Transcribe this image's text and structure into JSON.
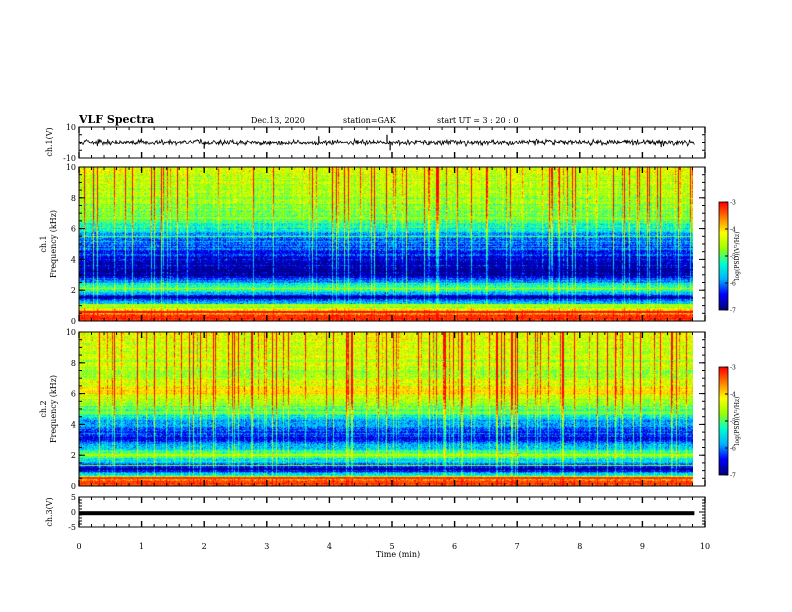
{
  "header": {
    "title": "VLF Spectra",
    "date": "Dec.13, 2020",
    "station": "station=GAK",
    "start_ut": "start  UT =   3  : 20 : 0"
  },
  "chart_data": [
    {
      "type": "line",
      "panel": "ch1-waveform",
      "ylabel": "ch.1(V)",
      "ylim": [
        -10,
        10
      ],
      "ytick_labels": [
        "10",
        "-10"
      ],
      "x_range_min": [
        0,
        9.83
      ],
      "approx_mean": 0,
      "approx_noise_amplitude": 2.5,
      "spikes": [
        {
          "x": 2.0,
          "y": -4
        },
        {
          "x": 3.83,
          "y": 4
        },
        {
          "x": 4.92,
          "y": 5
        },
        {
          "x": 4.97,
          "y": -5
        },
        {
          "x": 9.3,
          "y": -3
        }
      ]
    },
    {
      "type": "heatmap",
      "panel": "ch1-spectrogram",
      "ylabel": "ch.1\nFrequency (kHz)",
      "ylim": [
        0,
        10
      ],
      "ytick_labels": [
        "0",
        "2",
        "4",
        "6",
        "8",
        "10"
      ],
      "x_range_min": [
        0,
        9.83
      ],
      "colorbar": {
        "label": "log(PSD)(V²/Hz)",
        "range": [
          -7,
          -3
        ],
        "tick_labels": [
          "-3",
          "-4",
          "-5",
          "-6",
          "-7"
        ]
      },
      "frequency_profile_kHz": [
        {
          "f": 0.3,
          "log_psd": -3.2
        },
        {
          "f": 0.8,
          "log_psd": -4.5
        },
        {
          "f": 1.5,
          "log_psd": -6.8
        },
        {
          "f": 2.1,
          "log_psd": -4.8
        },
        {
          "f": 3.0,
          "log_psd": -6.9
        },
        {
          "f": 4.5,
          "log_psd": -6.3
        },
        {
          "f": 5.5,
          "log_psd": -5.9
        },
        {
          "f": 6.5,
          "log_psd": -5.0
        },
        {
          "f": 8.0,
          "log_psd": -4.6
        },
        {
          "f": 9.5,
          "log_psd": -4.4
        }
      ]
    },
    {
      "type": "heatmap",
      "panel": "ch2-spectrogram",
      "ylabel": "ch.2\nFrequency (kHz)",
      "ylim": [
        0,
        10
      ],
      "ytick_labels": [
        "0",
        "2",
        "4",
        "6",
        "8",
        "10"
      ],
      "x_range_min": [
        0,
        9.83
      ],
      "colorbar": {
        "label": "log(PSD)(V²/Hz)",
        "range": [
          -7,
          -3
        ],
        "tick_labels": [
          "-3",
          "-4",
          "-5",
          "-6",
          "-7"
        ]
      },
      "frequency_profile_kHz": [
        {
          "f": 0.3,
          "log_psd": -3.4
        },
        {
          "f": 1.0,
          "log_psd": -6.8
        },
        {
          "f": 2.0,
          "log_psd": -4.8
        },
        {
          "f": 3.0,
          "log_psd": -6.5
        },
        {
          "f": 4.2,
          "log_psd": -5.8
        },
        {
          "f": 5.0,
          "log_psd": -5.0
        },
        {
          "f": 6.1,
          "log_psd": -4.2
        },
        {
          "f": 7.5,
          "log_psd": -4.6
        },
        {
          "f": 9.0,
          "log_psd": -4.3
        }
      ]
    },
    {
      "type": "line",
      "panel": "ch3-waveform",
      "ylabel": "ch.3(V)",
      "ylim": [
        -5,
        5
      ],
      "ytick_labels": [
        "5",
        "0",
        "-5"
      ],
      "x_range_min": [
        0,
        9.83
      ],
      "approx_mean": -0.4,
      "xlabel": "Time (min)",
      "xlim": [
        0,
        10
      ],
      "xtick_labels": [
        "0",
        "1",
        "2",
        "3",
        "4",
        "5",
        "6",
        "7",
        "8",
        "9",
        "10"
      ]
    }
  ],
  "colors": {
    "colormap": [
      "#00007a",
      "#0000ff",
      "#00b4ff",
      "#00ffd0",
      "#9bff00",
      "#ffff00",
      "#ff8000",
      "#ff0000",
      "#ffffff"
    ],
    "trace": "#000000",
    "background": "#ffffff"
  }
}
